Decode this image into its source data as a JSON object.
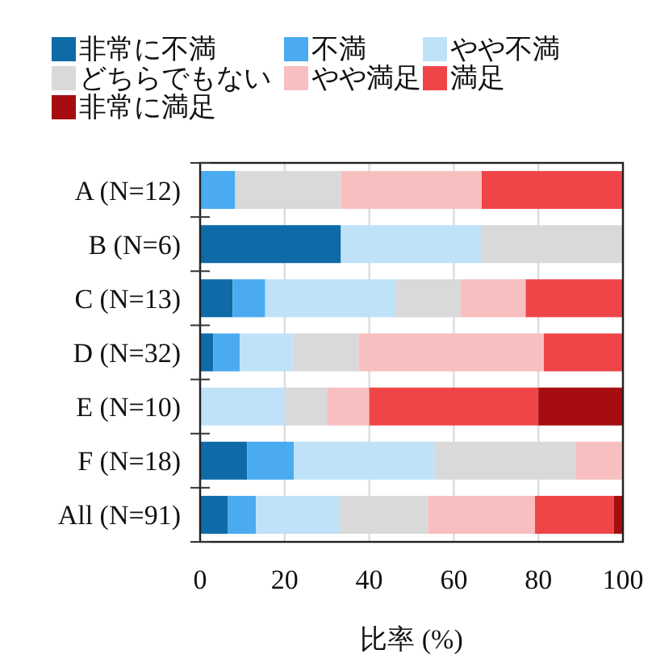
{
  "chart_data": {
    "type": "bar",
    "orientation": "horizontal",
    "stacked": true,
    "categories": [
      "A (N=12)",
      "B (N=6)",
      "C (N=13)",
      "D (N=32)",
      "E (N=10)",
      "F (N=18)",
      "All (N=91)"
    ],
    "series": [
      {
        "name": "非常に不満",
        "color": "#0f6aa8",
        "values": [
          0,
          33.3,
          7.7,
          3.1,
          0,
          11.1,
          6.6
        ]
      },
      {
        "name": "不満",
        "color": "#4aabf0",
        "values": [
          8.3,
          0,
          7.7,
          6.3,
          0,
          11.1,
          6.6
        ]
      },
      {
        "name": "やや不満",
        "color": "#bfe2f8",
        "values": [
          0,
          33.3,
          30.8,
          12.5,
          20,
          33.3,
          19.8
        ]
      },
      {
        "name": "どちらでもない",
        "color": "#d9d9d9",
        "values": [
          25,
          33.3,
          15.4,
          15.6,
          10,
          33.3,
          20.9
        ]
      },
      {
        "name": "やや満足",
        "color": "#f8bfc0",
        "values": [
          33.3,
          0,
          15.4,
          43.8,
          10,
          11.1,
          25.3
        ]
      },
      {
        "name": "満足",
        "color": "#f04548",
        "values": [
          33.3,
          0,
          23.1,
          18.8,
          40,
          0,
          18.7
        ]
      },
      {
        "name": "非常に満足",
        "color": "#a50d10",
        "values": [
          0,
          0,
          0,
          0,
          20,
          0,
          2.2
        ]
      }
    ],
    "xlim": [
      0,
      100
    ],
    "xticks": [
      0,
      20,
      40,
      60,
      80,
      100
    ],
    "xlabel": "比率 (%)",
    "grid": "x",
    "legend": "top"
  }
}
